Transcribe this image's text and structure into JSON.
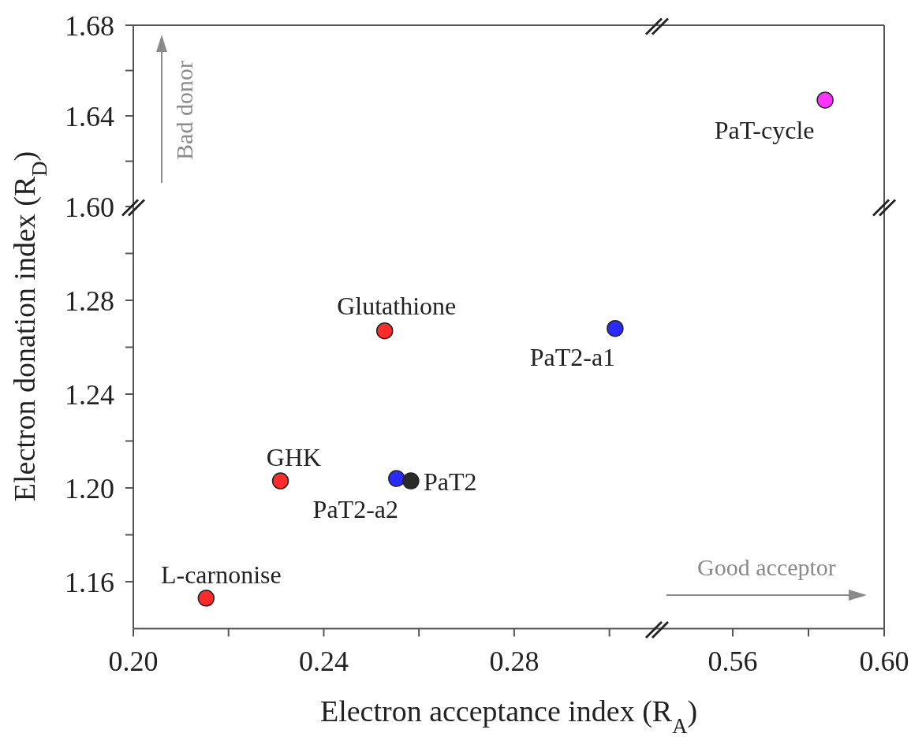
{
  "chart_data": [
    {
      "type": "scatter",
      "xlim": [
        0.2,
        0.31
      ],
      "ylim": [
        1.6,
        1.68
      ],
      "yticks": [
        {
          "value": 1.6,
          "label": "1.60"
        },
        {
          "value": 1.62,
          "label": null
        },
        1.64,
        {
          "value": 1.66,
          "label": null
        },
        1.68
      ],
      "tick_labels": "y",
      "marker": "circle",
      "annotations": [
        "Bad donor"
      ]
    },
    {
      "type": "scatter",
      "xlim": [
        0.54,
        0.6
      ],
      "ylim": [
        1.6,
        1.68
      ],
      "tick_labels": false,
      "marker": "circle",
      "series": [
        {
          "name": "PaT-cycle",
          "color": "#ff33ff",
          "x": [
            0.5844
          ],
          "values": [
            1.647
          ]
        }
      ]
    },
    {
      "type": "scatter",
      "xlabel": "Electron acceptance index (R$_{A}$)",
      "ylabel": "Electron donation index (R$_{D}$)",
      "xlim": [
        0.2,
        0.31
      ],
      "ylim": [
        1.14,
        1.32
      ],
      "xticks": [
        {
          "value": 0.2,
          "label": "0.20"
        },
        {
          "value": 0.22,
          "label": null
        },
        0.24,
        {
          "value": 0.26,
          "label": null
        },
        0.28,
        {
          "value": 0.3,
          "label": null
        }
      ],
      "yticks": [
        1.16,
        {
          "value": 1.18,
          "label": null
        },
        {
          "value": 1.2,
          "label": "1.20"
        },
        {
          "value": 1.22,
          "label": null
        },
        1.24,
        {
          "value": 1.26,
          "label": null
        },
        1.28,
        {
          "value": 1.3,
          "label": null
        }
      ],
      "marker": "circle",
      "series": [
        {
          "name": "L-carnonise",
          "color": "#ff2a2a",
          "x": [
            0.2153
          ],
          "values": [
            1.153
          ]
        },
        {
          "name": "GHK",
          "color": "#ff2a2a",
          "x": [
            0.2309
          ],
          "values": [
            1.203
          ]
        },
        {
          "name": "Glutathione",
          "color": "#ff2a2a",
          "x": [
            0.2528
          ],
          "values": [
            1.267
          ]
        },
        {
          "name": "PaT2-a2",
          "color": "#2a2aff",
          "x": [
            0.2553
          ],
          "values": [
            1.204
          ]
        },
        {
          "name": "PaT2",
          "color": "#2b2b2b",
          "x": [
            0.2583
          ],
          "values": [
            1.203
          ]
        },
        {
          "name": "PaT2-a1",
          "color": "#2a2aff",
          "x": [
            0.3012
          ],
          "values": [
            1.268
          ]
        }
      ]
    },
    {
      "type": "scatter",
      "xlim": [
        0.54,
        0.6
      ],
      "ylim": [
        1.14,
        1.32
      ],
      "xticks": [
        0.56,
        {
          "value": 0.58,
          "label": null
        },
        {
          "value": 0.6,
          "label": "0.60"
        }
      ],
      "tick_labels": "x",
      "marker": "circle",
      "annotations": [
        "Good acceptor"
      ]
    }
  ]
}
